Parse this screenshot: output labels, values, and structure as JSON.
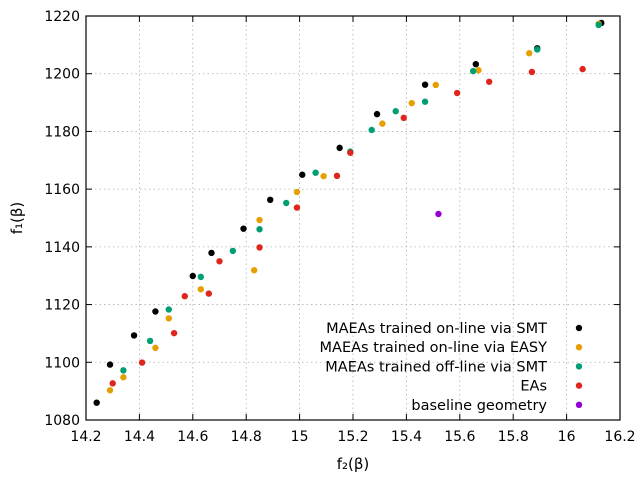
{
  "chart_data": {
    "type": "scatter",
    "xlabel": "f₂(β)",
    "ylabel": "f₁(β)",
    "xlim": [
      14.2,
      16.2
    ],
    "ylim": [
      1080,
      1220
    ],
    "xticks": [
      14.2,
      14.4,
      14.6,
      14.8,
      15,
      15.2,
      15.4,
      15.6,
      15.8,
      16,
      16.2
    ],
    "yticks": [
      1080,
      1100,
      1120,
      1140,
      1160,
      1180,
      1200,
      1220
    ],
    "xtick_labels": [
      "14.2",
      "14.4",
      "14.6",
      "14.8",
      "15",
      "15.2",
      "15.4",
      "15.6",
      "15.8",
      "16",
      "16.2"
    ],
    "ytick_labels": [
      "1080",
      "1100",
      "1120",
      "1140",
      "1160",
      "1180",
      "1200",
      "1220"
    ],
    "grid": true,
    "legend_position": "bottom-right",
    "series": [
      {
        "name": "MAEAs trained on-line via SMT",
        "color": "#000000",
        "points": [
          [
            14.24,
            1086
          ],
          [
            14.29,
            1099.2
          ],
          [
            14.38,
            1109.3
          ],
          [
            14.46,
            1117.6
          ],
          [
            14.6,
            1129.9
          ],
          [
            14.67,
            1137.9
          ],
          [
            14.79,
            1146.3
          ],
          [
            14.89,
            1156.3
          ],
          [
            15.01,
            1165
          ],
          [
            15.15,
            1174.3
          ],
          [
            15.29,
            1186
          ],
          [
            15.47,
            1196.2
          ],
          [
            15.66,
            1203.3
          ],
          [
            15.89,
            1208.8
          ],
          [
            16.13,
            1217.6
          ]
        ]
      },
      {
        "name": "MAEAs trained on-line via EASY",
        "color": "#e69f00",
        "points": [
          [
            14.29,
            1090.3
          ],
          [
            14.34,
            1094.8
          ],
          [
            14.46,
            1105
          ],
          [
            14.51,
            1115.2
          ],
          [
            14.63,
            1125.3
          ],
          [
            14.83,
            1131.9
          ],
          [
            14.85,
            1149.3
          ],
          [
            14.99,
            1159
          ],
          [
            15.09,
            1164.5
          ],
          [
            15.31,
            1182.7
          ],
          [
            15.42,
            1189.8
          ],
          [
            15.51,
            1196.1
          ],
          [
            15.67,
            1201.2
          ],
          [
            15.86,
            1207.1
          ],
          [
            16.12,
            1217.3
          ]
        ]
      },
      {
        "name": "MAEAs trained off-line via SMT",
        "color": "#009e73",
        "points": [
          [
            14.34,
            1097.2
          ],
          [
            14.44,
            1107.4
          ],
          [
            14.51,
            1118.3
          ],
          [
            14.63,
            1129.6
          ],
          [
            14.75,
            1138.6
          ],
          [
            14.85,
            1146.1
          ],
          [
            14.95,
            1155.2
          ],
          [
            15.06,
            1165.7
          ],
          [
            15.19,
            1173
          ],
          [
            15.27,
            1180.5
          ],
          [
            15.36,
            1187
          ],
          [
            15.47,
            1190.3
          ],
          [
            15.65,
            1200.9
          ],
          [
            15.89,
            1208.4
          ],
          [
            16.12,
            1216.9
          ]
        ]
      },
      {
        "name": "EAs",
        "color": "#e0261c",
        "points": [
          [
            14.3,
            1092.7
          ],
          [
            14.41,
            1099.9
          ],
          [
            14.53,
            1110.1
          ],
          [
            14.57,
            1122.9
          ],
          [
            14.66,
            1123.8
          ],
          [
            14.7,
            1135
          ],
          [
            14.85,
            1139.8
          ],
          [
            14.99,
            1153.6
          ],
          [
            15.14,
            1164.6
          ],
          [
            15.19,
            1172.6
          ],
          [
            15.39,
            1184.7
          ],
          [
            15.59,
            1193.3
          ],
          [
            15.71,
            1197.2
          ],
          [
            15.87,
            1200.6
          ],
          [
            16.06,
            1201.6
          ]
        ]
      },
      {
        "name": "baseline geometry",
        "color": "#9400d3",
        "points": [
          [
            15.52,
            1151.4
          ]
        ]
      }
    ]
  }
}
